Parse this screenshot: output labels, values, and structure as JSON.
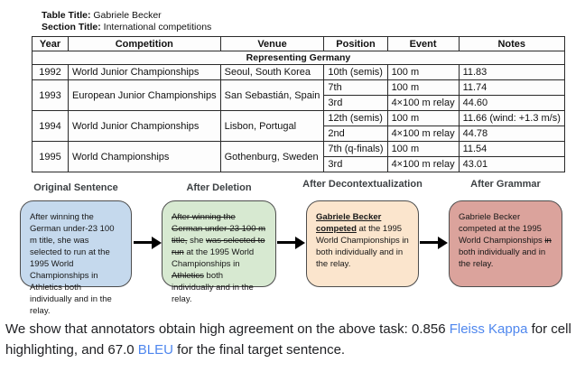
{
  "header": {
    "table_title_label": "Table Title:",
    "table_title": "Gabriele Becker",
    "section_title_label": "Section Title:",
    "section_title": "International competitions"
  },
  "table": {
    "columns": [
      "Year",
      "Competition",
      "Venue",
      "Position",
      "Event",
      "Notes"
    ],
    "group_header": "Representing Germany",
    "highlight_color": "#ffff00",
    "rows": [
      {
        "year": "1992",
        "competition": "World Junior Championships",
        "venue": "Seoul, South Korea",
        "subrows": [
          {
            "position": "10th (semis)",
            "event": "100 m",
            "notes": "11.83"
          }
        ]
      },
      {
        "year": "1993",
        "competition": "European Junior Championships",
        "venue": "San Sebastián, Spain",
        "subrows": [
          {
            "position": "7th",
            "event": "100 m",
            "notes": "11.74"
          },
          {
            "position": "3rd",
            "event": "4×100 m relay",
            "notes": "44.60"
          }
        ]
      },
      {
        "year": "1994",
        "competition": "World Junior Championships",
        "venue": "Lisbon, Portugal",
        "subrows": [
          {
            "position": "12th (semis)",
            "event": "100 m",
            "notes": "11.66 (wind: +1.3 m/s)"
          },
          {
            "position": "2nd",
            "event": "4×100 m relay",
            "notes": "44.78"
          }
        ]
      },
      {
        "year": "1995",
        "competition": "World Championships",
        "venue": "Gothenburg, Sweden",
        "highlighted_cells": [
          "year",
          "competition",
          "event"
        ],
        "subrows": [
          {
            "position": "7th (q-finals)",
            "event": "100 m",
            "notes": "11.54",
            "event_highlighted": true
          },
          {
            "position": "3rd",
            "event": "4×100 m relay",
            "notes": "43.01",
            "event_highlighted": true
          }
        ]
      }
    ]
  },
  "pipeline": {
    "stages": [
      {
        "label": "Original Sentence",
        "color": "#c5d9ed",
        "segments": [
          {
            "text": "After winning the German under-23 100 m title, she was selected to run at the 1995 World Championships in Athletics both individually and in the relay.",
            "style": "normal"
          }
        ]
      },
      {
        "label": "After Deletion",
        "color": "#d7e9d1",
        "segments": [
          {
            "text": "After winning the German under-23 100 m title,",
            "style": "strike"
          },
          {
            "text": " she ",
            "style": "normal"
          },
          {
            "text": "was selected to run",
            "style": "strike"
          },
          {
            "text": " at the 1995 World Championships in ",
            "style": "normal"
          },
          {
            "text": "Athletics",
            "style": "strike"
          },
          {
            "text": " both individually and in the relay.",
            "style": "normal"
          }
        ]
      },
      {
        "label": "After Decontextualization",
        "color": "#fbe5cd",
        "segments": [
          {
            "text": "Gabriele Becker competed",
            "style": "bold-underline"
          },
          {
            "text": " at the 1995 World Championships in both individually and in the relay.",
            "style": "normal"
          }
        ]
      },
      {
        "label": "After Grammar",
        "color": "#dba39c",
        "segments": [
          {
            "text": "Gabriele Becker competed at the 1995 World ",
            "style": "normal"
          },
          {
            "text": "Championships ",
            "style": "normal"
          },
          {
            "text": "in ",
            "style": "strike"
          },
          {
            "text": "both individually and in the relay.",
            "style": "normal"
          }
        ]
      }
    ]
  },
  "caption": {
    "link_color": "#4f87ee",
    "segments": [
      {
        "text": "We show that annotators obtain high agreement on the above task: 0.856 ",
        "style": "normal"
      },
      {
        "text": "Fleiss Kappa",
        "style": "link"
      },
      {
        "text": " for cell highlighting, and 67.0 ",
        "style": "normal"
      },
      {
        "text": "BLEU",
        "style": "link"
      },
      {
        "text": " for the final target sentence.",
        "style": "normal"
      }
    ]
  }
}
